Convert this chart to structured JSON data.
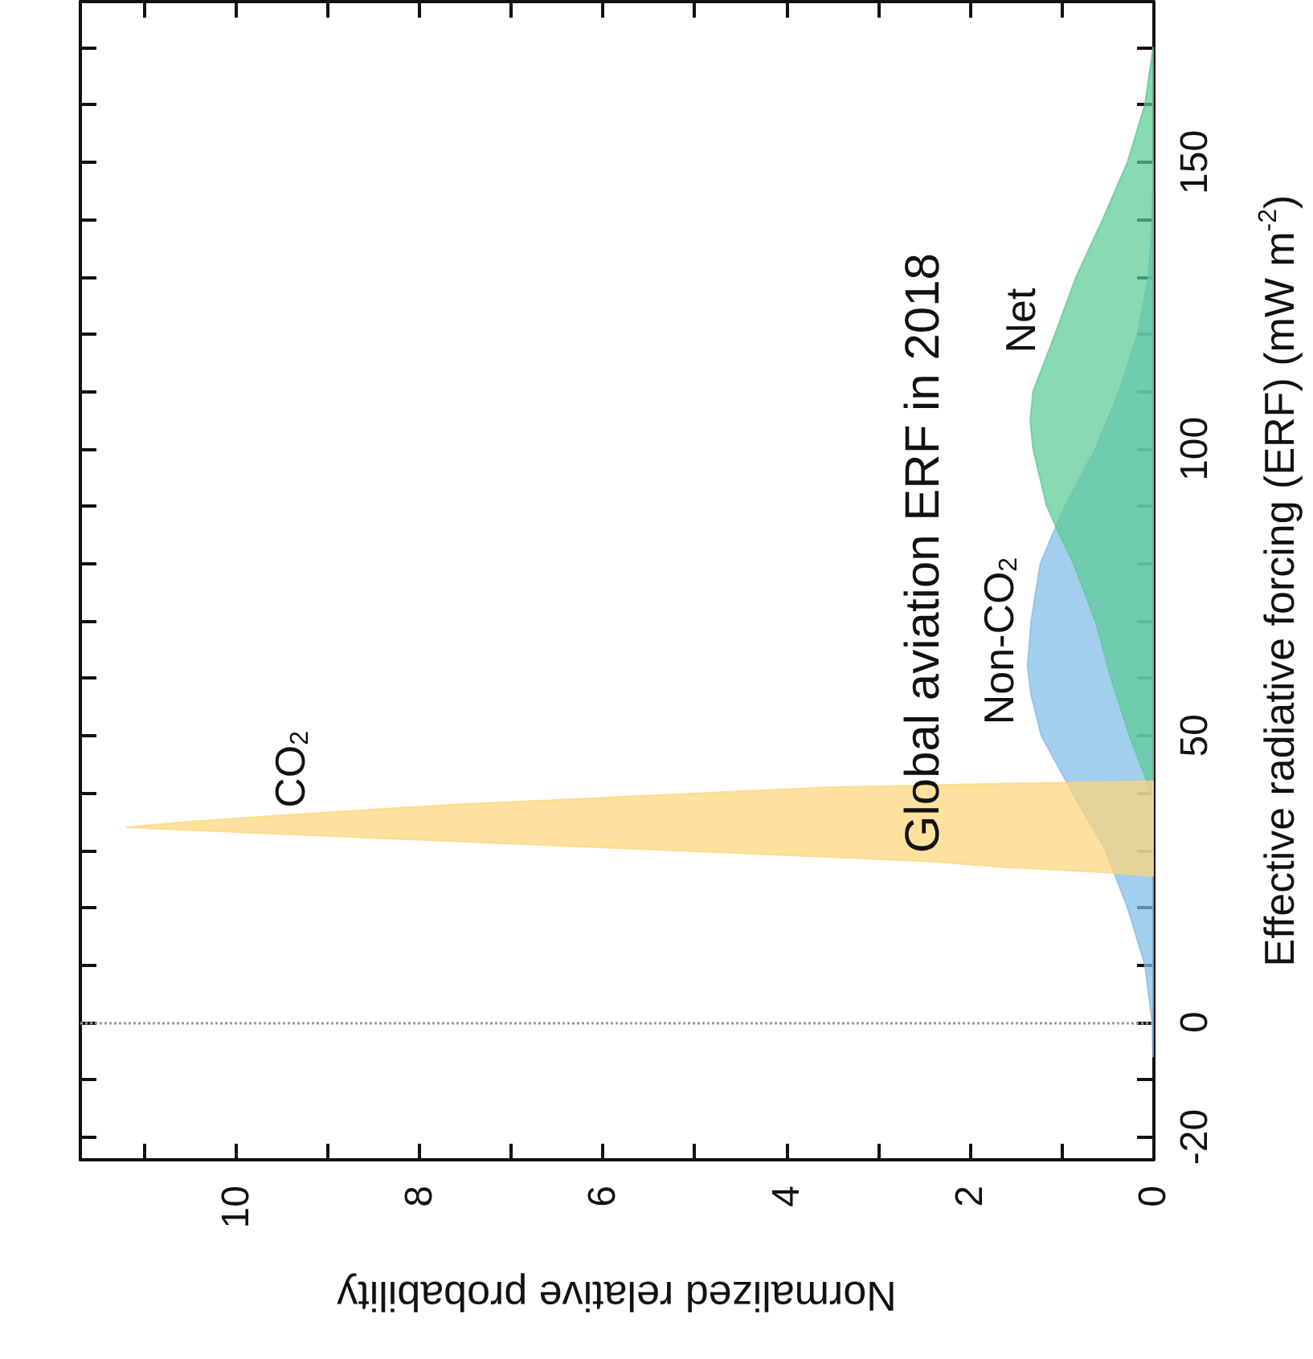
{
  "chart_data": {
    "type": "area",
    "orientation": "horizontal",
    "title": "Global aviation ERF in 2018",
    "ylabel": "Effective radiative forcing (ERF) (mW m$^{-2}$)",
    "xlabel": "Normalized relative probability",
    "ylim": [
      -24,
      178
    ],
    "yticks": [
      -20,
      {
        "value": -10,
        "label": null
      },
      0,
      {
        "value": 10,
        "label": null
      },
      {
        "value": 20,
        "label": null
      },
      {
        "value": 30,
        "label": null
      },
      {
        "value": 40,
        "label": null
      },
      50,
      {
        "value": 60,
        "label": null
      },
      {
        "value": 70,
        "label": null
      },
      {
        "value": 80,
        "label": null
      },
      {
        "value": 90,
        "label": null
      },
      100,
      {
        "value": 110,
        "label": null
      },
      {
        "value": 120,
        "label": null
      },
      {
        "value": 130,
        "label": null
      },
      {
        "value": 140,
        "label": null
      },
      150,
      {
        "value": 160,
        "label": null
      },
      {
        "value": 170,
        "label": null
      }
    ],
    "xlim": [
      11.7,
      0
    ],
    "xticks": [
      0,
      {
        "value": 1,
        "label": null
      },
      2,
      {
        "value": 3,
        "label": null
      },
      4,
      {
        "value": 5,
        "label": null
      },
      6,
      {
        "value": 7,
        "label": null
      },
      8,
      {
        "value": 9,
        "label": null
      },
      10,
      {
        "value": 11,
        "label": null
      }
    ],
    "grid": false,
    "legend": false,
    "ref_lines": [
      {
        "axis": "y",
        "value": 0,
        "color": "#999999",
        "line_style": "dotted"
      }
    ],
    "series": [
      {
        "name": "Non-CO$_{2}$",
        "color": "#80bce8",
        "x": [
          -6,
          0,
          10,
          20,
          30,
          40,
          50,
          57,
          62,
          70,
          80,
          85,
          90,
          100,
          110,
          120,
          130,
          140,
          150
        ],
        "values": [
          0,
          0.01,
          0.09,
          0.28,
          0.52,
          0.88,
          1.22,
          1.33,
          1.37,
          1.33,
          1.23,
          1.1,
          0.96,
          0.63,
          0.37,
          0.17,
          0.05,
          0.01,
          0
        ]
      },
      {
        "name": "Net",
        "color": "#5ccb96",
        "x": [
          38,
          40,
          50,
          60,
          70,
          80,
          85,
          90,
          100,
          105,
          110,
          120,
          130,
          140,
          150,
          160,
          170
        ],
        "values": [
          0,
          0.02,
          0.26,
          0.46,
          0.63,
          0.87,
          1.02,
          1.16,
          1.31,
          1.34,
          1.31,
          1.07,
          0.84,
          0.55,
          0.28,
          0.09,
          0
        ]
      },
      {
        "name": "CO$_{2}$",
        "color": "#fdd57a",
        "x": [
          25.5,
          26,
          27,
          28,
          29,
          30,
          31,
          32,
          33,
          34,
          35,
          36,
          37,
          38,
          39,
          40,
          41,
          41.5,
          41.8,
          42
        ],
        "values": [
          0,
          0.4,
          1.6,
          2.4,
          3.8,
          5.3,
          6.8,
          8.3,
          9.8,
          11.2,
          10.5,
          9.6,
          8.6,
          7.6,
          6.2,
          4.9,
          3.5,
          2.0,
          0.9,
          0
        ]
      }
    ]
  }
}
